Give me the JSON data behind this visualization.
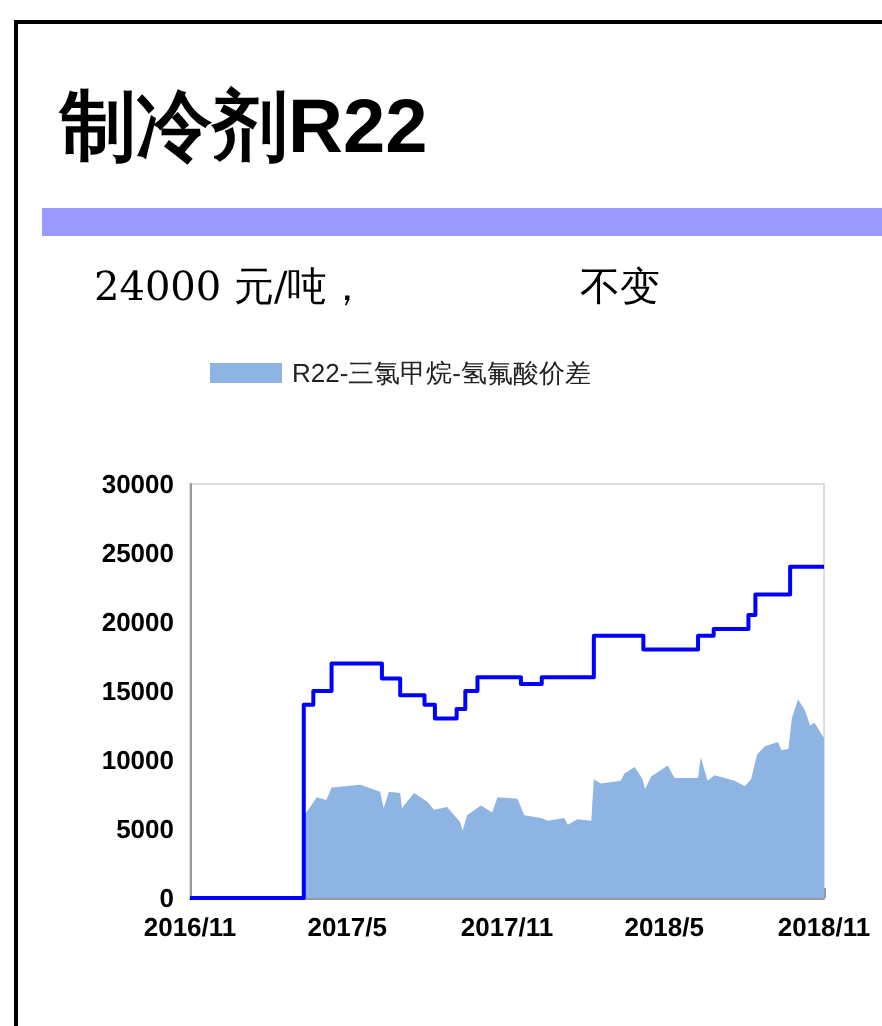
{
  "chart_data": {
    "type": "area",
    "title": "制冷剂R22",
    "annotations": [
      "24000 元/吨，",
      "不变"
    ],
    "xlim": [
      "2016-11-01",
      "2018-11-01"
    ],
    "xticks": [
      {
        "value": "2016-11-01",
        "label": "2016/11"
      },
      {
        "value": "2017-05-01",
        "label": "2017/5"
      },
      {
        "value": "2017-11-01",
        "label": "2017/11"
      },
      {
        "value": "2018-05-01",
        "label": "2018/5"
      },
      {
        "value": "2018-11-01",
        "label": "2018/11"
      }
    ],
    "ylim": [
      0,
      30000
    ],
    "yticks": [
      0,
      5000,
      10000,
      15000,
      20000,
      25000,
      30000
    ],
    "grid": false,
    "legend": "top left",
    "series": [
      {
        "name": "R22-三氯甲烷-氢氟酸价差",
        "color": "#8db4e2",
        "x": [
          "2016-11-01",
          "2017-03-10",
          "2017-03-13",
          "2017-03-15",
          "2017-03-27",
          "2017-04-07",
          "2017-04-13",
          "2017-05-16",
          "2017-06-08",
          "2017-06-12",
          "2017-06-18",
          "2017-07-01",
          "2017-07-03",
          "2017-07-17",
          "2017-08-01",
          "2017-08-09",
          "2017-08-24",
          "2017-09-08",
          "2017-09-11",
          "2017-09-16",
          "2017-10-02",
          "2017-10-15",
          "2017-10-21",
          "2017-11-13",
          "2017-11-21",
          "2017-12-10",
          "2017-12-18",
          "2018-01-06",
          "2018-01-10",
          "2018-01-21",
          "2018-02-06",
          "2018-02-09",
          "2018-02-17",
          "2018-03-12",
          "2018-03-16",
          "2018-03-28",
          "2018-04-06",
          "2018-04-09",
          "2018-04-16",
          "2018-05-05",
          "2018-05-13",
          "2018-06-09",
          "2018-06-12",
          "2018-06-20",
          "2018-06-28",
          "2018-07-21",
          "2018-08-02",
          "2018-08-09",
          "2018-08-16",
          "2018-08-25",
          "2018-09-09",
          "2018-09-13",
          "2018-09-21",
          "2018-09-25",
          "2018-10-02",
          "2018-10-10",
          "2018-10-16",
          "2018-10-21",
          "2018-11-01"
        ],
        "values": [
          0,
          0,
          6100,
          6200,
          7300,
          7100,
          8000,
          8200,
          7700,
          6500,
          7700,
          7600,
          6500,
          7600,
          7000,
          6400,
          6600,
          5500,
          4900,
          6000,
          6700,
          6200,
          7300,
          7200,
          6000,
          5800,
          5600,
          5800,
          5300,
          5700,
          5600,
          8600,
          8300,
          8500,
          9000,
          9500,
          8600,
          7900,
          8800,
          9600,
          8700,
          8700,
          10200,
          8500,
          8900,
          8500,
          8100,
          8600,
          10400,
          11000,
          11300,
          10700,
          10800,
          13000,
          14400,
          13600,
          12500,
          12700,
          11600
        ]
      },
      {
        "type": "step",
        "color": "#0000ff",
        "x": [
          "2016-11-01",
          "2017-03-12",
          "2017-03-23",
          "2017-04-13",
          "2017-06-10",
          "2017-07-01",
          "2017-07-29",
          "2017-08-10",
          "2017-09-04",
          "2017-09-14",
          "2017-09-28",
          "2017-11-17",
          "2017-12-11",
          "2018-02-09",
          "2018-04-07",
          "2018-06-09",
          "2018-06-27",
          "2018-08-06",
          "2018-08-14",
          "2018-09-23",
          "2018-11-01"
        ],
        "values": [
          0,
          14000,
          15000,
          17000,
          15900,
          14700,
          14000,
          13000,
          13700,
          15000,
          16000,
          15500,
          16000,
          19000,
          18000,
          19000,
          19500,
          20500,
          22000,
          24000,
          24000
        ]
      }
    ]
  }
}
